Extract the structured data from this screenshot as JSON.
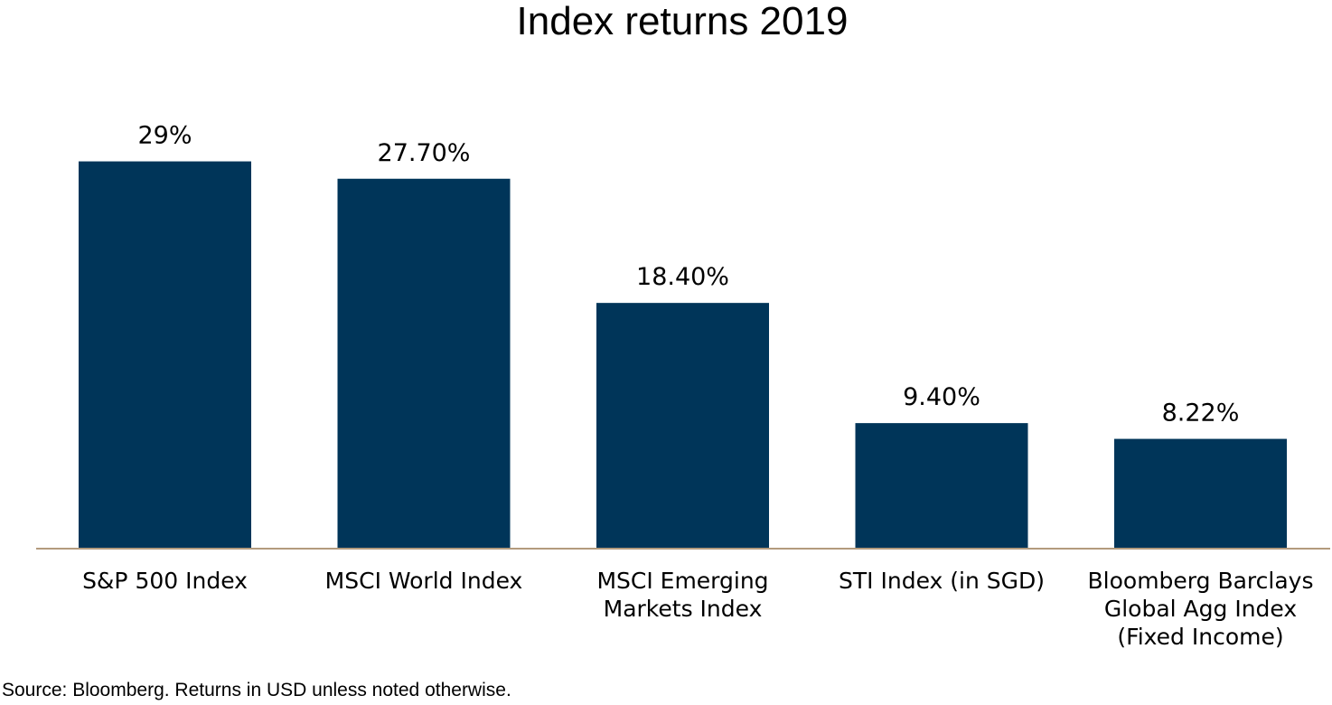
{
  "chart_data": {
    "type": "bar",
    "title": "Index returns 2019",
    "xlabel": "",
    "ylabel": "",
    "categories": [
      [
        "S&P 500 Index"
      ],
      [
        "MSCI World Index"
      ],
      [
        "MSCI Emerging",
        "Markets Index"
      ],
      [
        "STI Index (in SGD)"
      ],
      [
        "Bloomberg Barclays",
        "Global Agg Index",
        "(Fixed Income)"
      ]
    ],
    "values": [
      29,
      27.7,
      18.4,
      9.4,
      8.22
    ],
    "data_labels": [
      "29%",
      "27.70%",
      "18.40%",
      "9.40%",
      "8.22%"
    ],
    "ylim": [
      0,
      31
    ],
    "grid": false,
    "legend": "none",
    "bar_color": "#003559",
    "axis_color": "#b39b7d"
  },
  "footer": {
    "source": "Source: Bloomberg. Returns in USD unless noted otherwise."
  }
}
